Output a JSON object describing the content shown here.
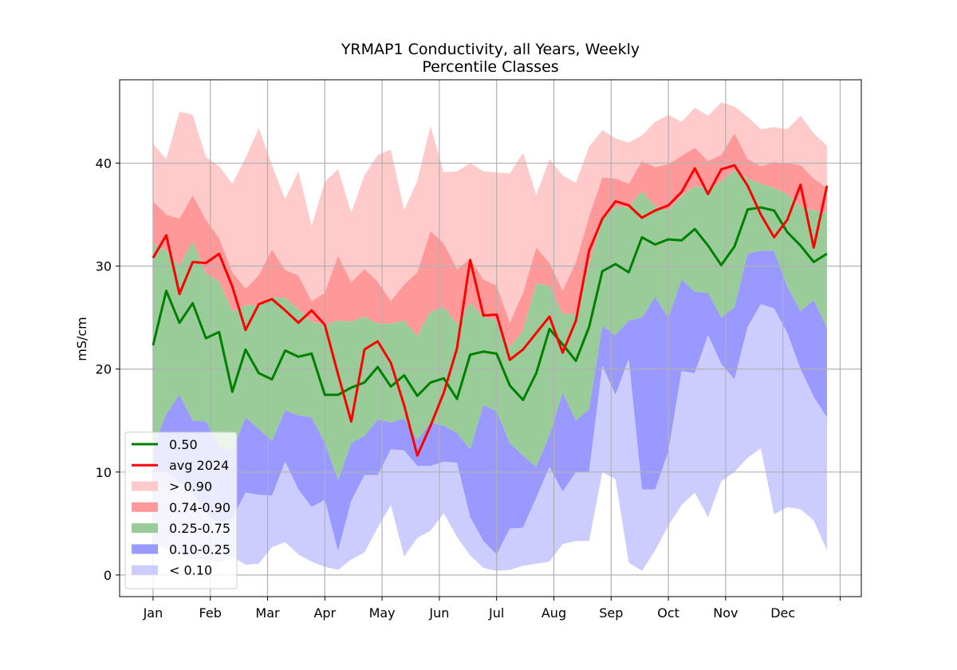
{
  "chart_data": {
    "type": "band",
    "title": "YRMAP1 Conductivity, all Years, Weekly\nPercentile Classes",
    "y_label": "mS/cm",
    "x": [
      0,
      1,
      2,
      3,
      4,
      5,
      6,
      7,
      8,
      9,
      10,
      11,
      12,
      13,
      14,
      15,
      16,
      17,
      18,
      19,
      20,
      21,
      22,
      23,
      24,
      25,
      26,
      27,
      28,
      29,
      30,
      31,
      32,
      33,
      34,
      35,
      36,
      37,
      38,
      39,
      40,
      41,
      42,
      43,
      44,
      45,
      46,
      47,
      48,
      49,
      50,
      51
    ],
    "xlim": [
      -2.53,
      53.6
    ],
    "xticks": [
      {
        "value": 0,
        "label": "Jan"
      },
      {
        "value": 4.333,
        "label": "Feb"
      },
      {
        "value": 8.667,
        "label": "Mar"
      },
      {
        "value": 13,
        "label": "Apr"
      },
      {
        "value": 17.333,
        "label": "May"
      },
      {
        "value": 21.667,
        "label": "Jun"
      },
      {
        "value": 26,
        "label": "Jul"
      },
      {
        "value": 30.333,
        "label": "Aug"
      },
      {
        "value": 34.667,
        "label": "Sep"
      },
      {
        "value": 39,
        "label": "Oct"
      },
      {
        "value": 43.333,
        "label": "Nov"
      },
      {
        "value": 47.667,
        "label": "Dec"
      },
      {
        "value": 52,
        "label": null
      }
    ],
    "ylim": [
      -2.1,
      48.1
    ],
    "yticks": [
      0,
      10,
      20,
      30,
      40
    ],
    "grid": true,
    "legend": "lower left",
    "series": [
      {
        "name": "0.50",
        "color": "#008000",
        "values": [
          22.3,
          27.6,
          24.5,
          26.4,
          23,
          23.6,
          17.8,
          21.9,
          19.6,
          19,
          21.8,
          21.2,
          21.5,
          17.5,
          17.5,
          18.2,
          18.7,
          20.2,
          18.3,
          19.4,
          17.4,
          18.7,
          19.1,
          17.1,
          21.4,
          21.7,
          21.5,
          18.4,
          17,
          19.6,
          23.9,
          22.4,
          20.8,
          24.1,
          29.5,
          30.2,
          29.4,
          32.8,
          32.1,
          32.6,
          32.5,
          33.6,
          32,
          30.1,
          31.9,
          35.5,
          35.7,
          35.4,
          33.3,
          32,
          30.4,
          31.2
        ]
      },
      {
        "name": "avg 2024",
        "color": "#ff0000",
        "values": [
          30.8,
          33,
          27.3,
          30.4,
          30.3,
          31.2,
          28,
          23.8,
          26.3,
          26.8,
          25.7,
          24.5,
          25.7,
          24.3,
          19.5,
          14.9,
          21.9,
          22.7,
          20.6,
          16.5,
          11.6,
          14.5,
          17.7,
          22,
          30.6,
          25.2,
          25.3,
          20.9,
          21.9,
          23.5,
          25.1,
          21.6,
          24.7,
          31.5,
          34.6,
          36.3,
          35.9,
          34.7,
          35.4,
          35.9,
          37.2,
          39.5,
          37,
          39.4,
          39.8,
          37.8,
          35,
          32.8,
          34.5,
          37.9,
          31.8,
          37.8
        ]
      }
    ],
    "bands": [
      {
        "name": "> 0.90",
        "color": "#ffcaca",
        "lower": [
          36.3,
          35,
          34.6,
          36.9,
          34.5,
          32.7,
          29.4,
          27.8,
          29.1,
          31.6,
          29.6,
          29.1,
          26.6,
          27.4,
          31,
          28.4,
          29.7,
          28.5,
          26.6,
          28.2,
          29.4,
          33.4,
          32.2,
          29.7,
          30.7,
          28.7,
          28.1,
          24.5,
          27.4,
          31.8,
          30.3,
          27.6,
          30.4,
          34.8,
          38.6,
          38.5,
          38,
          40.2,
          39.6,
          39.9,
          40.7,
          41.5,
          40.2,
          40.8,
          42.9,
          40.4,
          39.7,
          40.1,
          40,
          39.8,
          38.5,
          37.6
        ],
        "upper": [
          41.9,
          40.4,
          45,
          44.7,
          40.6,
          39.7,
          38,
          40.5,
          43.4,
          39.8,
          36.5,
          39.2,
          33.9,
          38.2,
          39.4,
          35.2,
          38.8,
          40.8,
          41.3,
          35.4,
          38.3,
          43.6,
          39.1,
          39.2,
          40,
          39.2,
          39.1,
          39,
          41,
          36.9,
          40.4,
          38.8,
          38.1,
          41.6,
          43.2,
          42.4,
          42,
          42.7,
          44,
          44.7,
          44,
          45.4,
          44.6,
          45.9,
          45.5,
          44.5,
          43.3,
          43.5,
          43.3,
          44.6,
          42.9,
          41.7
        ]
      },
      {
        "name": "0.74-0.90",
        "color": "#ff9999",
        "lower": [
          32.2,
          31.5,
          30,
          32.4,
          29.3,
          28.5,
          25.6,
          26.2,
          26.2,
          27,
          26.9,
          25.8,
          24.6,
          24.3,
          24.7,
          24.6,
          25.1,
          24.4,
          24.4,
          24.7,
          23.2,
          25.6,
          26,
          24.4,
          26.4,
          25.1,
          24.7,
          22.1,
          23.7,
          28.3,
          28.1,
          25.3,
          25.4,
          30.1,
          34.6,
          35.8,
          35.7,
          37.3,
          35.8,
          35.4,
          36.8,
          37.8,
          37.5,
          38.2,
          39.3,
          38.5,
          38,
          37.6,
          37,
          35.8,
          35.4,
          35.2
        ],
        "upper": [
          36.3,
          35,
          34.6,
          36.9,
          34.5,
          32.7,
          29.4,
          27.8,
          29.1,
          31.6,
          29.6,
          29.1,
          26.6,
          27.4,
          31,
          28.4,
          29.7,
          28.5,
          26.6,
          28.2,
          29.4,
          33.4,
          32.2,
          29.7,
          30.7,
          28.7,
          28.1,
          24.5,
          27.4,
          31.8,
          30.3,
          27.6,
          30.4,
          34.8,
          38.6,
          38.5,
          38,
          40.2,
          39.6,
          39.9,
          40.7,
          41.5,
          40.2,
          40.8,
          42.9,
          40.4,
          39.7,
          40.1,
          40,
          39.8,
          38.5,
          37.6
        ]
      },
      {
        "name": "0.25-0.75",
        "color": "#99cc99",
        "lower": [
          12.5,
          15.6,
          17.5,
          15,
          14.9,
          12.5,
          12,
          15.3,
          14.2,
          13,
          16,
          15.5,
          15.3,
          12.8,
          9.2,
          12.8,
          13.5,
          15.1,
          14.8,
          15.2,
          13.1,
          14.8,
          14.5,
          13.8,
          12.2,
          16.5,
          15.9,
          12.8,
          11.6,
          10.5,
          13.6,
          17.7,
          15,
          16.1,
          24.2,
          23.3,
          24.7,
          25,
          27,
          25,
          28.7,
          27.5,
          27.4,
          25,
          26,
          31.2,
          31.5,
          31.5,
          28,
          25.6,
          26.7,
          24
        ],
        "upper": [
          32.2,
          31.5,
          30,
          32.4,
          29.3,
          28.5,
          25.6,
          26.2,
          26.2,
          27,
          26.9,
          25.8,
          24.6,
          24.3,
          24.7,
          24.6,
          25.1,
          24.4,
          24.4,
          24.7,
          23.2,
          25.6,
          26,
          24.4,
          26.4,
          25.1,
          24.7,
          22.1,
          23.7,
          28.3,
          28.1,
          25.3,
          25.4,
          30.1,
          34.6,
          35.8,
          35.7,
          37.3,
          35.8,
          35.4,
          36.8,
          37.8,
          37.5,
          38.2,
          39.3,
          38.5,
          38,
          37.6,
          37,
          35.8,
          35.4,
          35.2
        ]
      },
      {
        "name": "0.10-0.25",
        "color": "#9999ff",
        "lower": [
          10,
          10,
          9,
          8,
          6,
          5,
          5.5,
          8,
          7.8,
          7.7,
          11,
          8.3,
          6.6,
          7.3,
          2.3,
          7.2,
          9.7,
          9.7,
          12.2,
          12.1,
          10.6,
          10.6,
          11,
          10.9,
          5.6,
          3.3,
          2,
          4.5,
          4.6,
          7.5,
          10.5,
          8.1,
          10,
          10,
          20.3,
          17.5,
          21,
          8.3,
          8.3,
          12,
          19.8,
          19.6,
          23.3,
          20.5,
          19,
          24.1,
          26.3,
          25.9,
          23.5,
          20,
          17.3,
          15.3
        ],
        "upper": [
          12.5,
          15.6,
          17.5,
          15,
          14.9,
          12.5,
          12,
          15.3,
          14.2,
          13,
          16,
          15.5,
          15.3,
          12.8,
          9.2,
          12.8,
          13.5,
          15.1,
          14.8,
          15.2,
          13.1,
          14.8,
          14.5,
          13.8,
          12.2,
          16.5,
          15.9,
          12.8,
          11.6,
          10.5,
          13.6,
          17.7,
          15,
          16.1,
          24.2,
          23.3,
          24.7,
          25,
          27,
          25,
          28.7,
          27.5,
          27.4,
          25,
          26,
          31.2,
          31.5,
          31.5,
          28,
          25.6,
          26.7,
          24
        ]
      },
      {
        "name": "< 0.10",
        "color": "#ccccff",
        "lower": [
          3,
          2.5,
          2,
          1.5,
          1.5,
          1.2,
          1.8,
          1,
          1.1,
          2.7,
          3.2,
          2,
          1.3,
          0.8,
          0.5,
          1.5,
          2.2,
          4.6,
          6.8,
          1.8,
          3.6,
          4.3,
          6,
          3.7,
          1.9,
          0.7,
          0.4,
          0.5,
          0.9,
          1.1,
          1.3,
          3,
          3.3,
          3.3,
          10,
          9.3,
          1.2,
          0.4,
          2.4,
          4.8,
          6.8,
          8,
          5.6,
          9.1,
          10,
          11.4,
          12.3,
          5.9,
          6.6,
          6.4,
          5.3,
          2.4
        ],
        "upper": [
          10,
          10,
          9,
          8,
          6,
          5,
          5.5,
          8,
          7.8,
          7.7,
          11,
          8.3,
          6.6,
          7.3,
          2.3,
          7.2,
          9.7,
          9.7,
          12.2,
          12.1,
          10.6,
          10.6,
          11,
          10.9,
          5.6,
          3.3,
          2,
          4.5,
          4.6,
          7.5,
          10.5,
          8.1,
          10,
          10,
          20.3,
          17.5,
          21,
          8.3,
          8.3,
          12,
          19.8,
          19.6,
          23.3,
          20.5,
          19,
          24.1,
          26.3,
          25.9,
          23.5,
          20,
          17.3,
          15.3
        ]
      }
    ]
  }
}
